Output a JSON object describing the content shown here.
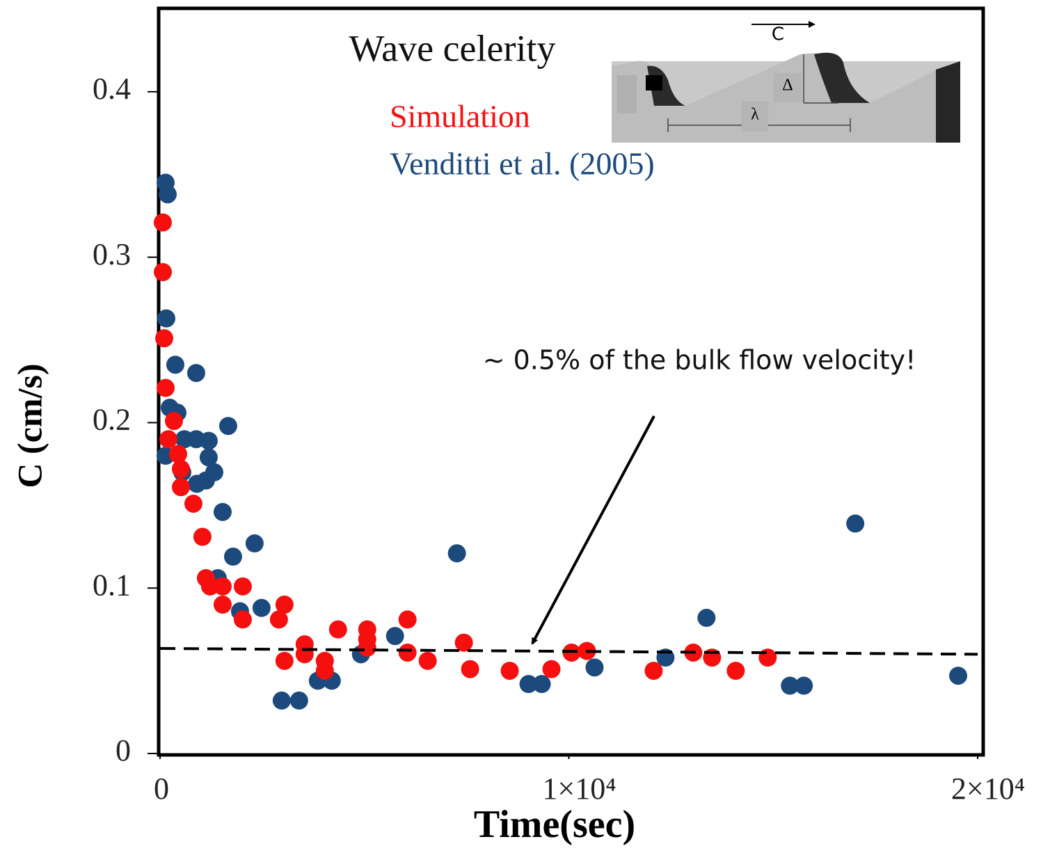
{
  "chart_data": {
    "type": "scatter",
    "title": "Wave celerity",
    "xlabel": "Time(sec)",
    "ylabel": "C (cm/s)",
    "annotation": "~ 0.5% of the bulk flow velocity!",
    "inset_labels": [
      "C",
      "Δ",
      "λ"
    ],
    "xlim": [
      0,
      20000
    ],
    "ylim": [
      0,
      0.45
    ],
    "xticks": [
      0,
      {
        "value": 10000,
        "label": "1×10⁴"
      },
      {
        "value": 20000,
        "label": "2×10⁴"
      }
    ],
    "yticks": [
      0,
      0.1,
      0.2,
      0.3,
      0.4
    ],
    "grid": false,
    "series": [
      {
        "name": "Simulation",
        "color": "#f50f0f",
        "x": [
          68,
          68,
          102,
          136,
          204,
          340,
          442,
          510,
          510,
          816,
          1037,
          1122,
          1224,
          1531,
          1531,
          2024,
          2024,
          2908,
          3044,
          3044,
          3537,
          3537,
          4031,
          4031,
          4354,
          5068,
          5068,
          5068,
          6054,
          6054,
          6548,
          7432,
          7585,
          8554,
          9575,
          10068,
          10442,
          12075,
          13044,
          13503,
          14082,
          14864
        ],
        "values": [
          0.321,
          0.291,
          0.251,
          0.221,
          0.19,
          0.201,
          0.181,
          0.172,
          0.161,
          0.151,
          0.131,
          0.106,
          0.101,
          0.101,
          0.09,
          0.101,
          0.081,
          0.081,
          0.09,
          0.056,
          0.066,
          0.06,
          0.056,
          0.05,
          0.075,
          0.075,
          0.069,
          0.064,
          0.081,
          0.061,
          0.056,
          0.067,
          0.051,
          0.05,
          0.051,
          0.061,
          0.062,
          0.05,
          0.061,
          0.058,
          0.05,
          0.058
        ]
      },
      {
        "name": "Venditti et al. (2005)",
        "color": "#1d4a7c",
        "x": [
          136,
          187,
          153,
          374,
          884,
          238,
          425,
          136,
          595,
          884,
          1190,
          544,
          901,
          1122,
          1190,
          1327,
          1667,
          1531,
          1786,
          2313,
          1412,
          1956,
          2483,
          2976,
          3401,
          3861,
          4201,
          4915,
          5748,
          7262,
          9014,
          9337,
          10629,
          12364,
          13367,
          15408,
          15748,
          17007,
          19524
        ],
        "values": [
          0.345,
          0.338,
          0.263,
          0.235,
          0.23,
          0.209,
          0.206,
          0.18,
          0.19,
          0.19,
          0.189,
          0.17,
          0.163,
          0.165,
          0.179,
          0.17,
          0.198,
          0.146,
          0.119,
          0.127,
          0.106,
          0.086,
          0.088,
          0.032,
          0.032,
          0.044,
          0.044,
          0.06,
          0.071,
          0.121,
          0.042,
          0.042,
          0.052,
          0.058,
          0.082,
          0.041,
          0.041,
          0.139,
          0.047
        ]
      }
    ],
    "reference_line": {
      "x": [
        0,
        20000
      ],
      "values": [
        0.0635,
        0.06
      ],
      "color": "#000000",
      "dashed": true
    }
  }
}
